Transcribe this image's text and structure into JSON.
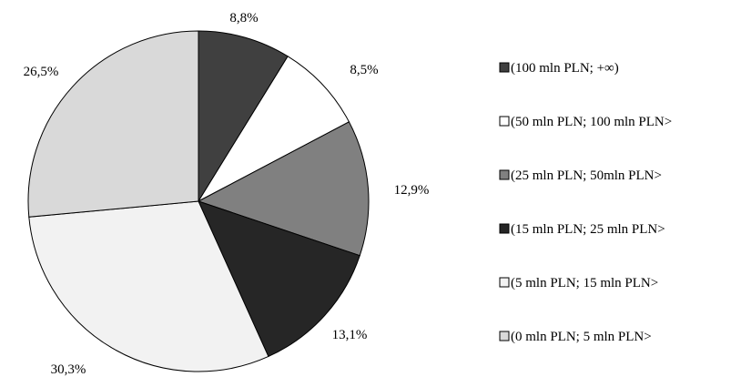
{
  "chart_data": {
    "type": "pie",
    "title": "",
    "start_angle_deg": 0,
    "direction": "clockwise",
    "slices": [
      {
        "label": "(100 mln PLN; +∞)",
        "value": 8.8,
        "display": "8,8%",
        "color": "#404040"
      },
      {
        "label": "(50 mln PLN; 100 mln PLN>",
        "value": 8.5,
        "display": "8,5%",
        "color": "#ffffff"
      },
      {
        "label": "(25 mln PLN; 50mln PLN>",
        "value": 12.9,
        "display": "12,9%",
        "color": "#808080"
      },
      {
        "label": "(15 mln PLN; 25 mln PLN>",
        "value": 13.1,
        "display": "13,1%",
        "color": "#262626"
      },
      {
        "label": "(5 mln PLN; 15 mln PLN>",
        "value": 30.3,
        "display": "30,3%",
        "color": "#f2f2f2"
      },
      {
        "label": "(0 mln PLN; 5 mln PLN>",
        "value": 26.5,
        "display": "26,5%",
        "color": "#d9d9d9"
      }
    ],
    "legend_position": "right",
    "slice_edge_color": "#000000"
  }
}
